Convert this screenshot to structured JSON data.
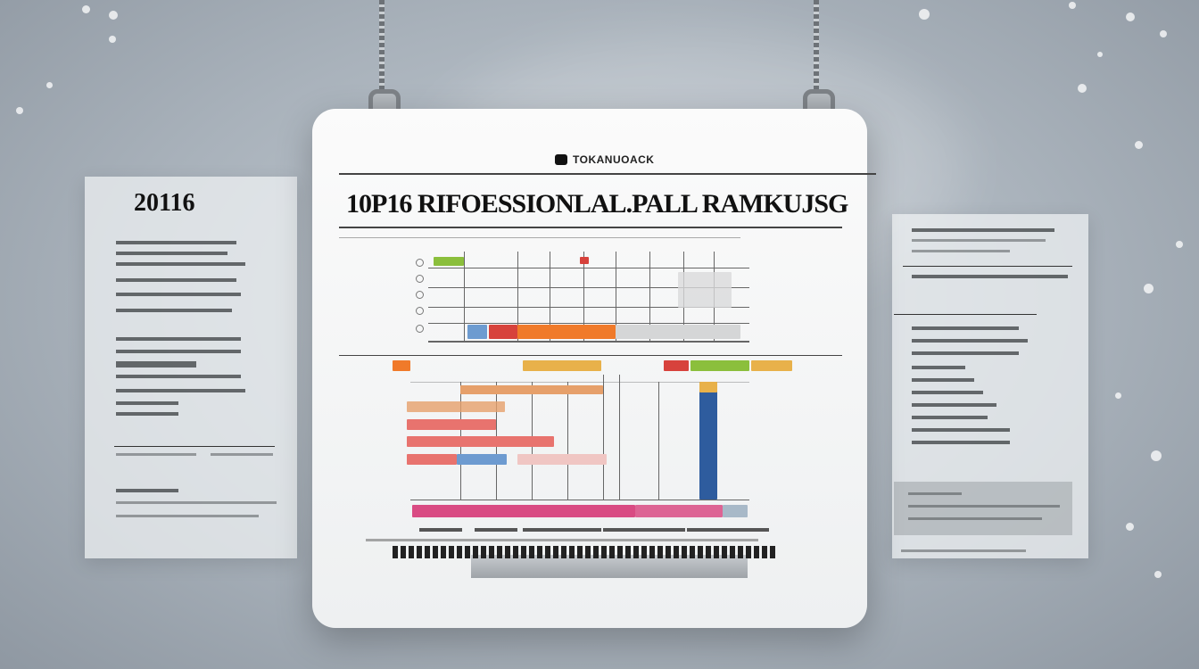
{
  "side_panel": {
    "year": "20116"
  },
  "board": {
    "brand": "TOKANUOACK",
    "title": "10P16 RIFOESSIONLAL.PALL RAMKUJSG"
  },
  "chart_data": {
    "type": "bar",
    "title": "10P16 RIFOESSIONLAL.PALL RAMKUJSG",
    "colors": [
      "#8bbf3c",
      "#d7423c",
      "#f07a2a",
      "#e8b14a",
      "#e6a06b",
      "#e8736e",
      "#6d9bd0",
      "#d94b83",
      "#2e5c9e"
    ]
  }
}
